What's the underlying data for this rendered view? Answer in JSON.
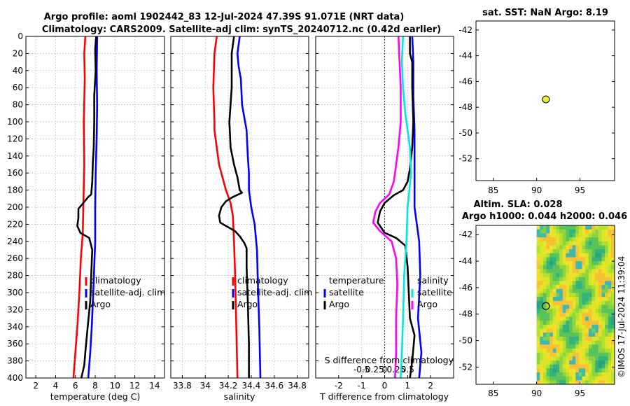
{
  "title": {
    "line1": "Argo profile: aoml 1902442_83 12-Jul-2024 47.39S 91.071E (NRT data)",
    "line2": "Climatology: CARS2009. Satellite-adj clim: synTS_20240712.nc (0.42d earlier)"
  },
  "colors": {
    "climatology": "#ff0000",
    "satellite": "#0000ff",
    "argo": "#000000",
    "s_satellite": "#00e5e5",
    "s_clim": "#ff00ff",
    "marker": "#e8f032"
  },
  "chart_data": [
    {
      "type": "line",
      "id": "temperature",
      "xlabel": "temperature (deg C)",
      "xlim": [
        1,
        15
      ],
      "ylim": [
        0,
        400
      ],
      "xticks": [
        "2",
        "4",
        "6",
        "8",
        "10",
        "12",
        "14"
      ],
      "yticks": [
        "0",
        "20",
        "40",
        "60",
        "80",
        "100",
        "120",
        "140",
        "160",
        "180",
        "200",
        "220",
        "240",
        "260",
        "280",
        "300",
        "320",
        "340",
        "360",
        "380",
        "400"
      ],
      "legend": [
        "climatology",
        "satellite-adj. clim",
        "Argo"
      ],
      "series": [
        {
          "name": "climatology",
          "color": "#ff0000",
          "points": [
            [
              7.0,
              0
            ],
            [
              6.9,
              20
            ],
            [
              6.95,
              50
            ],
            [
              6.85,
              100
            ],
            [
              6.9,
              150
            ],
            [
              6.8,
              200
            ],
            [
              6.75,
              230
            ],
            [
              6.55,
              260
            ],
            [
              6.4,
              300
            ],
            [
              6.2,
              340
            ],
            [
              6.0,
              370
            ],
            [
              5.8,
              400
            ]
          ]
        },
        {
          "name": "satellite-adj. clim",
          "color": "#0000ff",
          "points": [
            [
              8.2,
              0
            ],
            [
              8.15,
              40
            ],
            [
              8.2,
              80
            ],
            [
              8.15,
              120
            ],
            [
              8.05,
              160
            ],
            [
              8.0,
              200
            ],
            [
              8.0,
              240
            ],
            [
              7.9,
              270
            ],
            [
              7.8,
              300
            ],
            [
              7.65,
              340
            ],
            [
              7.5,
              370
            ],
            [
              7.3,
              400
            ]
          ]
        },
        {
          "name": "Argo",
          "color": "#000000",
          "points": [
            [
              8.1,
              0
            ],
            [
              8.0,
              15
            ],
            [
              8.05,
              40
            ],
            [
              7.9,
              70
            ],
            [
              7.9,
              100
            ],
            [
              7.85,
              130
            ],
            [
              7.75,
              150
            ],
            [
              7.7,
              170
            ],
            [
              7.6,
              185
            ],
            [
              7.3,
              188
            ],
            [
              6.8,
              195
            ],
            [
              6.3,
              202
            ],
            [
              6.3,
              212
            ],
            [
              6.2,
              222
            ],
            [
              6.5,
              230
            ],
            [
              7.4,
              236
            ],
            [
              7.7,
              250
            ],
            [
              7.6,
              280
            ],
            [
              7.5,
              310
            ],
            [
              7.2,
              345
            ],
            [
              7.0,
              370
            ],
            [
              6.9,
              385
            ],
            [
              6.6,
              400
            ]
          ]
        }
      ]
    },
    {
      "type": "line",
      "id": "salinity",
      "xlabel": "salinity",
      "xlim": [
        33.7,
        34.9
      ],
      "ylim": [
        0,
        400
      ],
      "xticks": [
        "33.8",
        "34",
        "34.2",
        "34.4",
        "34.6",
        "34.8"
      ],
      "legend": [
        "climatology",
        "satellite-adj. clim",
        "Argo"
      ],
      "series": [
        {
          "name": "climatology",
          "color": "#ff0000",
          "points": [
            [
              34.1,
              0
            ],
            [
              34.08,
              20
            ],
            [
              34.07,
              60
            ],
            [
              34.08,
              100
            ],
            [
              34.08,
              110
            ],
            [
              34.12,
              150
            ],
            [
              34.18,
              180
            ],
            [
              34.22,
              195
            ],
            [
              34.24,
              210
            ],
            [
              34.25,
              240
            ],
            [
              34.26,
              280
            ],
            [
              34.27,
              340
            ],
            [
              34.28,
              400
            ]
          ]
        },
        {
          "name": "satellite-adj. clim",
          "color": "#0000ff",
          "points": [
            [
              34.3,
              0
            ],
            [
              34.28,
              20
            ],
            [
              34.29,
              35
            ],
            [
              34.31,
              50
            ],
            [
              34.32,
              80
            ],
            [
              34.36,
              110
            ],
            [
              34.37,
              140
            ],
            [
              34.38,
              160
            ],
            [
              34.38,
              180
            ],
            [
              34.4,
              200
            ],
            [
              34.43,
              220
            ],
            [
              34.45,
              250
            ],
            [
              34.46,
              300
            ],
            [
              34.47,
              340
            ],
            [
              34.48,
              400
            ]
          ]
        },
        {
          "name": "Argo",
          "color": "#000000",
          "points": [
            [
              34.25,
              0
            ],
            [
              34.23,
              20
            ],
            [
              34.23,
              60
            ],
            [
              34.21,
              100
            ],
            [
              34.22,
              130
            ],
            [
              34.25,
              150
            ],
            [
              34.28,
              165
            ],
            [
              34.3,
              180
            ],
            [
              34.32,
              183
            ],
            [
              34.24,
              188
            ],
            [
              34.18,
              193
            ],
            [
              34.14,
              200
            ],
            [
              34.12,
              210
            ],
            [
              34.13,
              218
            ],
            [
              34.18,
              222
            ],
            [
              34.26,
              228
            ],
            [
              34.3,
              234
            ],
            [
              34.34,
              242
            ],
            [
              34.36,
              248
            ],
            [
              34.36,
              270
            ],
            [
              34.37,
              310
            ],
            [
              34.38,
              360
            ],
            [
              34.38,
              400
            ]
          ]
        }
      ]
    },
    {
      "type": "line",
      "id": "differences",
      "xlabel": "T difference from climatology",
      "xlim": [
        -3,
        3
      ],
      "ylim": [
        0,
        400
      ],
      "xticks": [
        "-2",
        "-1",
        "0",
        "1",
        "2"
      ],
      "top_axis_label": "S difference from climatology",
      "top_xticks": [
        "-0.5",
        "-0.25",
        "0",
        "0.25",
        "0.5"
      ],
      "legend_left_title": "temperature",
      "legend_left": [
        "satellite",
        "Argo"
      ],
      "legend_right_title": "salinity",
      "legend_right": [
        "satellite",
        "Argo"
      ],
      "series": [
        {
          "name": "T satellite",
          "color": "#0000ff",
          "points": [
            [
              1.2,
              0
            ],
            [
              1.25,
              30
            ],
            [
              1.25,
              70
            ],
            [
              1.3,
              110
            ],
            [
              1.3,
              150
            ],
            [
              1.3,
              200
            ],
            [
              1.5,
              240
            ],
            [
              1.55,
              280
            ],
            [
              1.45,
              330
            ],
            [
              1.6,
              370
            ],
            [
              1.5,
              400
            ]
          ]
        },
        {
          "name": "T Argo",
          "color": "#000000",
          "points": [
            [
              1.1,
              0
            ],
            [
              1.1,
              20
            ],
            [
              1.2,
              30
            ],
            [
              1.2,
              60
            ],
            [
              1.25,
              100
            ],
            [
              1.2,
              130
            ],
            [
              1.1,
              155
            ],
            [
              1.0,
              170
            ],
            [
              0.8,
              180
            ],
            [
              0.4,
              186
            ],
            [
              0,
              195
            ],
            [
              -0.2,
              205
            ],
            [
              -0.3,
              218
            ],
            [
              0,
              230
            ],
            [
              0.5,
              236
            ],
            [
              0.9,
              245
            ],
            [
              1.0,
              270
            ],
            [
              1.05,
              300
            ],
            [
              1.1,
              330
            ],
            [
              1.3,
              350
            ],
            [
              1.2,
              380
            ],
            [
              1.1,
              400
            ]
          ]
        },
        {
          "name": "S satellite",
          "color": "#00e5e5",
          "points": [
            [
              0.8,
              0
            ],
            [
              0.75,
              30
            ],
            [
              0.8,
              60
            ],
            [
              0.9,
              90
            ],
            [
              1.1,
              130
            ],
            [
              1.15,
              160
            ],
            [
              1.0,
              200
            ],
            [
              0.95,
              240
            ],
            [
              0.85,
              280
            ],
            [
              0.8,
              330
            ],
            [
              0.75,
              370
            ],
            [
              0.7,
              400
            ]
          ]
        },
        {
          "name": "S Argo",
          "color": "#ff00ff",
          "points": [
            [
              0.6,
              0
            ],
            [
              0.65,
              30
            ],
            [
              0.7,
              60
            ],
            [
              0.7,
              100
            ],
            [
              0.6,
              130
            ],
            [
              0.5,
              150
            ],
            [
              0.4,
              170
            ],
            [
              0.2,
              185
            ],
            [
              -0.2,
              195
            ],
            [
              -0.4,
              205
            ],
            [
              -0.5,
              218
            ],
            [
              -0.2,
              228
            ],
            [
              0.3,
              240
            ],
            [
              0.5,
              260
            ],
            [
              0.55,
              290
            ],
            [
              0.5,
              330
            ],
            [
              0.5,
              370
            ],
            [
              0.45,
              400
            ]
          ]
        }
      ]
    },
    {
      "type": "scatter",
      "id": "sst_map",
      "title": "sat. SST: NaN Argo: 8.19",
      "xlim": [
        83,
        99
      ],
      "ylim": [
        -53.7,
        -41.3
      ],
      "xticks": [
        "85",
        "90",
        "95"
      ],
      "yticks": [
        "-42",
        "-44",
        "-46",
        "-48",
        "-50",
        "-52"
      ],
      "points": [
        [
          91.07,
          -47.39
        ]
      ]
    },
    {
      "type": "heatmap",
      "id": "sla_map",
      "title_line1": "Altim. SLA: 0.028",
      "title_line2": "Argo h1000: 0.044 h2000: 0.046",
      "xlim": [
        83,
        99
      ],
      "ylim": [
        -53.3,
        -41.3
      ],
      "xticks": [
        "85",
        "90",
        "95"
      ],
      "yticks": [
        "-42",
        "-44",
        "-46",
        "-48",
        "-50",
        "-52"
      ],
      "data_lon_range": [
        90,
        99
      ],
      "points": [
        [
          91.07,
          -47.39
        ]
      ]
    }
  ],
  "credit": "©IMOS 17-Jul-2024 11:39:04"
}
